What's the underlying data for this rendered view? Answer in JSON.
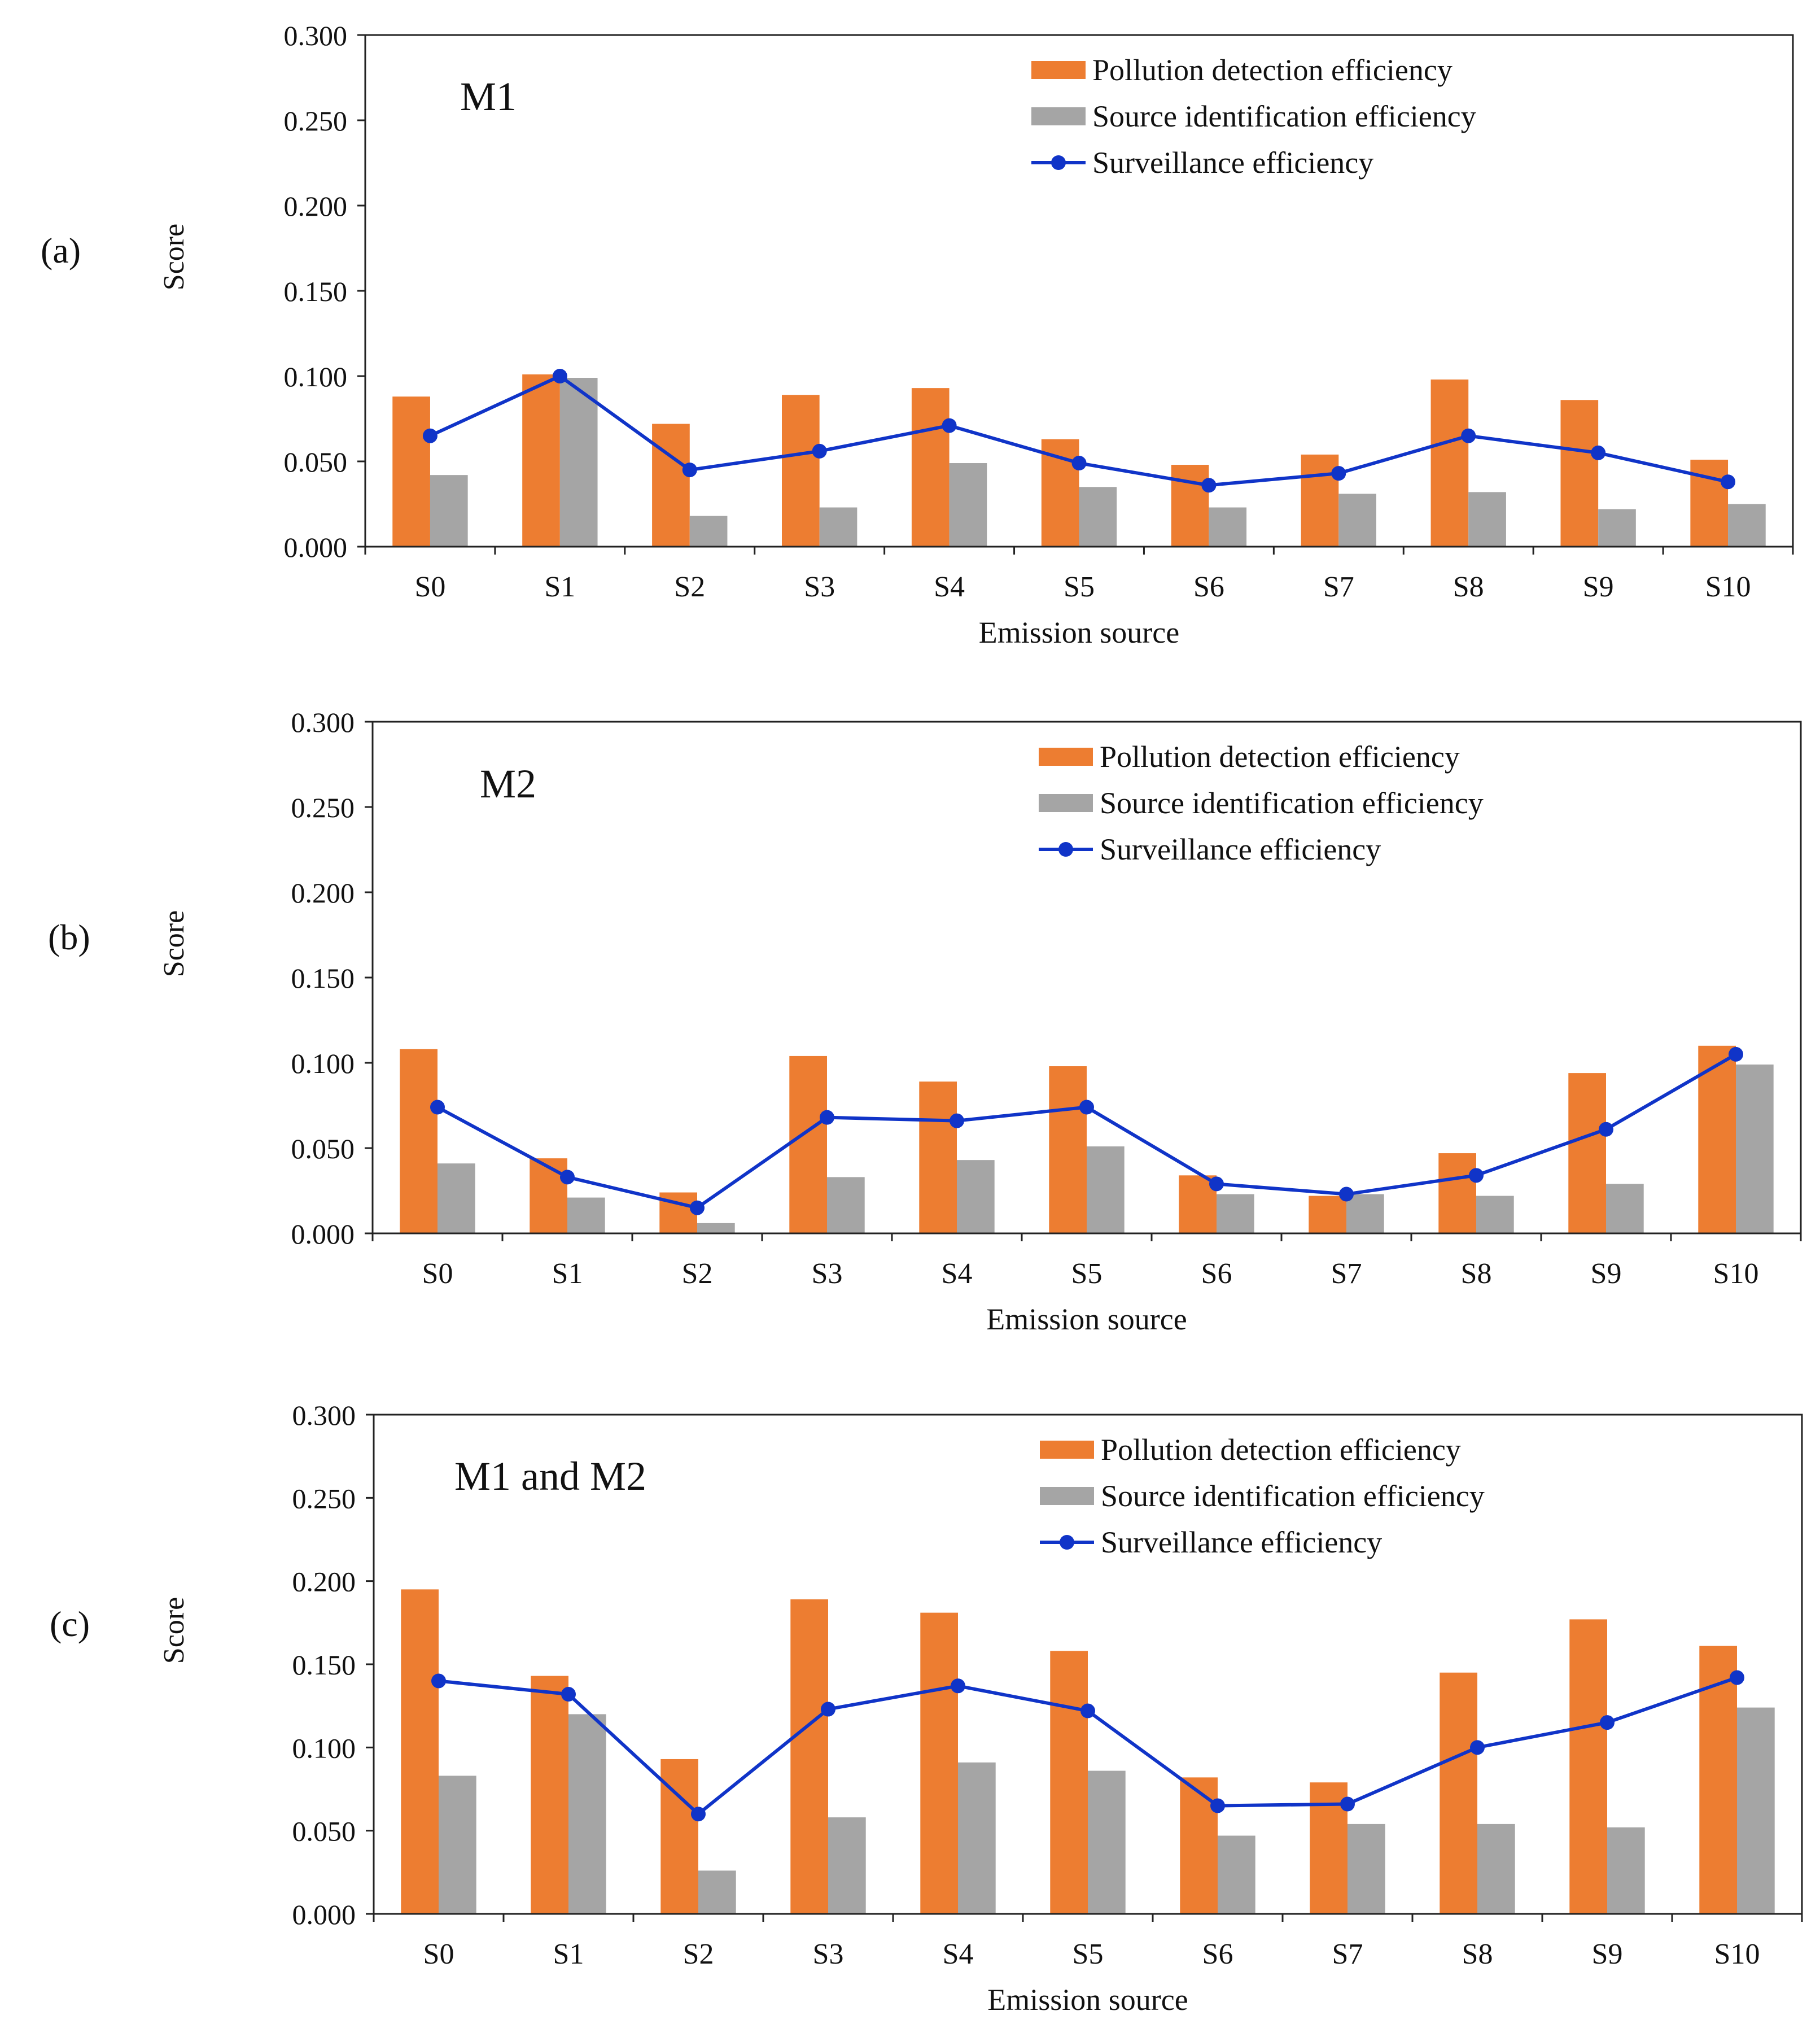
{
  "colors": {
    "pollution": "#ED7D31",
    "source": "#A5A5A5",
    "surveillance": "#1034C8",
    "axis": "#222222",
    "text": "#111111"
  },
  "chart_data": [
    {
      "type": "bar",
      "panel_label": "(a)",
      "title": "M1",
      "xlabel": "Emission source",
      "ylabel": "Score",
      "ylim": [
        0,
        0.3
      ],
      "yticks": [
        "0.000",
        "0.050",
        "0.100",
        "0.150",
        "0.200",
        "0.250",
        "0.300"
      ],
      "grid": false,
      "legend_position": "top-right",
      "categories": [
        "S0",
        "S1",
        "S2",
        "S3",
        "S4",
        "S5",
        "S6",
        "S7",
        "S8",
        "S9",
        "S10"
      ],
      "series": [
        {
          "name": "Pollution detection efficiency",
          "kind": "bar",
          "values": [
            0.088,
            0.101,
            0.072,
            0.089,
            0.093,
            0.063,
            0.048,
            0.054,
            0.098,
            0.086,
            0.051
          ]
        },
        {
          "name": "Source identification efficiency",
          "kind": "bar",
          "values": [
            0.042,
            0.099,
            0.018,
            0.023,
            0.049,
            0.035,
            0.023,
            0.031,
            0.032,
            0.022,
            0.025
          ]
        },
        {
          "name": "Surveillance efficiency",
          "kind": "line",
          "values": [
            0.065,
            0.1,
            0.045,
            0.056,
            0.071,
            0.049,
            0.036,
            0.043,
            0.065,
            0.055,
            0.038
          ]
        }
      ]
    },
    {
      "type": "bar",
      "panel_label": "(b)",
      "title": "M2",
      "xlabel": "Emission source",
      "ylabel": "Score",
      "ylim": [
        0,
        0.3
      ],
      "yticks": [
        "0.000",
        "0.050",
        "0.100",
        "0.150",
        "0.200",
        "0.250",
        "0.300"
      ],
      "grid": false,
      "legend_position": "top-right",
      "categories": [
        "S0",
        "S1",
        "S2",
        "S3",
        "S4",
        "S5",
        "S6",
        "S7",
        "S8",
        "S9",
        "S10"
      ],
      "series": [
        {
          "name": "Pollution detection efficiency",
          "kind": "bar",
          "values": [
            0.108,
            0.044,
            0.024,
            0.104,
            0.089,
            0.098,
            0.034,
            0.022,
            0.047,
            0.094,
            0.11
          ]
        },
        {
          "name": "Source identification efficiency",
          "kind": "bar",
          "values": [
            0.041,
            0.021,
            0.006,
            0.033,
            0.043,
            0.051,
            0.023,
            0.023,
            0.022,
            0.029,
            0.099
          ]
        },
        {
          "name": "Surveillance efficiency",
          "kind": "line",
          "values": [
            0.074,
            0.033,
            0.015,
            0.068,
            0.066,
            0.074,
            0.029,
            0.023,
            0.034,
            0.061,
            0.105
          ]
        }
      ]
    },
    {
      "type": "bar",
      "panel_label": "(c)",
      "title": "M1 and M2",
      "xlabel": "Emission source",
      "ylabel": "Score",
      "ylim": [
        0,
        0.3
      ],
      "yticks": [
        "0.000",
        "0.050",
        "0.100",
        "0.150",
        "0.200",
        "0.250",
        "0.300"
      ],
      "grid": false,
      "legend_position": "top-right",
      "categories": [
        "S0",
        "S1",
        "S2",
        "S3",
        "S4",
        "S5",
        "S6",
        "S7",
        "S8",
        "S9",
        "S10"
      ],
      "series": [
        {
          "name": "Pollution detection efficiency",
          "kind": "bar",
          "values": [
            0.195,
            0.143,
            0.093,
            0.189,
            0.181,
            0.158,
            0.082,
            0.079,
            0.145,
            0.177,
            0.161
          ]
        },
        {
          "name": "Source identification efficiency",
          "kind": "bar",
          "values": [
            0.083,
            0.12,
            0.026,
            0.058,
            0.091,
            0.086,
            0.047,
            0.054,
            0.054,
            0.052,
            0.124
          ]
        },
        {
          "name": "Surveillance efficiency",
          "kind": "line",
          "values": [
            0.14,
            0.132,
            0.06,
            0.123,
            0.137,
            0.122,
            0.065,
            0.066,
            0.1,
            0.115,
            0.142
          ]
        }
      ]
    }
  ]
}
